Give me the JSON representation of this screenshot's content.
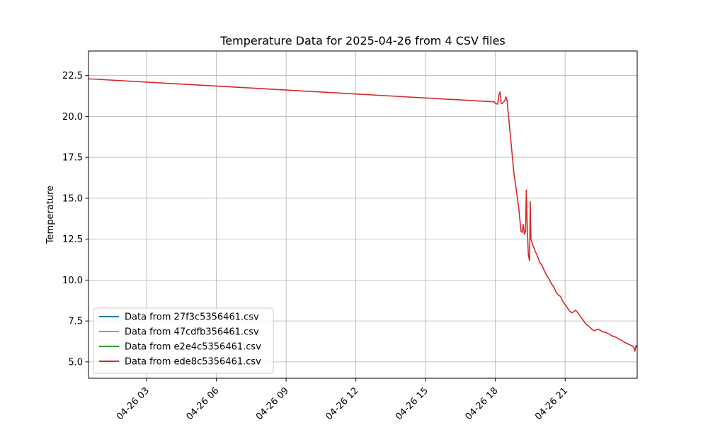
{
  "chart_data": {
    "type": "line",
    "title": "Temperature Data for 2025-04-26 from 4 CSV files",
    "xlabel": "",
    "ylabel": "Temperature",
    "xlim_hours": [
      0.5,
      24.1
    ],
    "ylim": [
      4.0,
      24.0
    ],
    "x_ticks": [
      {
        "hour": 3,
        "label": "04-26 03"
      },
      {
        "hour": 6,
        "label": "04-26 06"
      },
      {
        "hour": 9,
        "label": "04-26 09"
      },
      {
        "hour": 12,
        "label": "04-26 12"
      },
      {
        "hour": 15,
        "label": "04-26 15"
      },
      {
        "hour": 18,
        "label": "04-26 18"
      },
      {
        "hour": 21,
        "label": "04-26 21"
      }
    ],
    "y_ticks": [
      {
        "value": 5.0,
        "label": "5.0"
      },
      {
        "value": 7.5,
        "label": "7.5"
      },
      {
        "value": 10.0,
        "label": "10.0"
      },
      {
        "value": 12.5,
        "label": "12.5"
      },
      {
        "value": 15.0,
        "label": "15.0"
      },
      {
        "value": 17.5,
        "label": "17.5"
      },
      {
        "value": 20.0,
        "label": "20.0"
      },
      {
        "value": 22.5,
        "label": "22.5"
      }
    ],
    "grid": true,
    "legend_position": "lower-left",
    "series": [
      {
        "name": "Data from 27f3c5356461.csv",
        "color": "#1f77b4",
        "points": []
      },
      {
        "name": "Data from 47cdfb356461.csv",
        "color": "#ff7f0e",
        "points": []
      },
      {
        "name": "Data from e2e4c5356461.csv",
        "color": "#2ca02c",
        "points": []
      },
      {
        "name": "Data from ede8c5356461.csv",
        "color": "#d62728",
        "points": [
          [
            0.5,
            22.3
          ],
          [
            17.85,
            20.9
          ],
          [
            17.95,
            20.9
          ],
          [
            18.0,
            20.8
          ],
          [
            18.1,
            20.75
          ],
          [
            18.15,
            21.3
          ],
          [
            18.2,
            21.5
          ],
          [
            18.25,
            20.8
          ],
          [
            18.3,
            20.8
          ],
          [
            18.4,
            20.95
          ],
          [
            18.45,
            21.2
          ],
          [
            18.5,
            21.0
          ],
          [
            18.6,
            19.5
          ],
          [
            18.8,
            16.5
          ],
          [
            19.0,
            14.5
          ],
          [
            19.1,
            13.0
          ],
          [
            19.15,
            12.9
          ],
          [
            19.2,
            13.4
          ],
          [
            19.25,
            12.8
          ],
          [
            19.3,
            13.0
          ],
          [
            19.33,
            15.5
          ],
          [
            19.37,
            13.2
          ],
          [
            19.42,
            11.5
          ],
          [
            19.47,
            11.2
          ],
          [
            19.5,
            14.8
          ],
          [
            19.53,
            12.5
          ],
          [
            19.6,
            12.2
          ],
          [
            19.7,
            11.8
          ],
          [
            19.8,
            11.5
          ],
          [
            19.9,
            11.1
          ],
          [
            20.0,
            10.9
          ],
          [
            20.1,
            10.6
          ],
          [
            20.2,
            10.3
          ],
          [
            20.3,
            10.1
          ],
          [
            20.4,
            9.8
          ],
          [
            20.5,
            9.6
          ],
          [
            20.6,
            9.3
          ],
          [
            20.7,
            9.1
          ],
          [
            20.8,
            9.0
          ],
          [
            20.9,
            8.7
          ],
          [
            21.0,
            8.5
          ],
          [
            21.1,
            8.3
          ],
          [
            21.2,
            8.1
          ],
          [
            21.3,
            8.0
          ],
          [
            21.45,
            8.15
          ],
          [
            21.55,
            8.0
          ],
          [
            21.7,
            7.7
          ],
          [
            21.8,
            7.5
          ],
          [
            21.9,
            7.3
          ],
          [
            22.0,
            7.2
          ],
          [
            22.15,
            7.0
          ],
          [
            22.25,
            6.9
          ],
          [
            22.4,
            7.0
          ],
          [
            22.5,
            6.95
          ],
          [
            22.6,
            6.85
          ],
          [
            22.75,
            6.8
          ],
          [
            22.9,
            6.7
          ],
          [
            23.0,
            6.6
          ],
          [
            23.2,
            6.5
          ],
          [
            23.3,
            6.4
          ],
          [
            23.45,
            6.3
          ],
          [
            23.55,
            6.2
          ],
          [
            23.7,
            6.1
          ],
          [
            23.85,
            6.0
          ],
          [
            23.95,
            5.9
          ],
          [
            24.0,
            5.65
          ],
          [
            24.05,
            6.0
          ],
          [
            24.1,
            5.9
          ]
        ]
      }
    ]
  }
}
